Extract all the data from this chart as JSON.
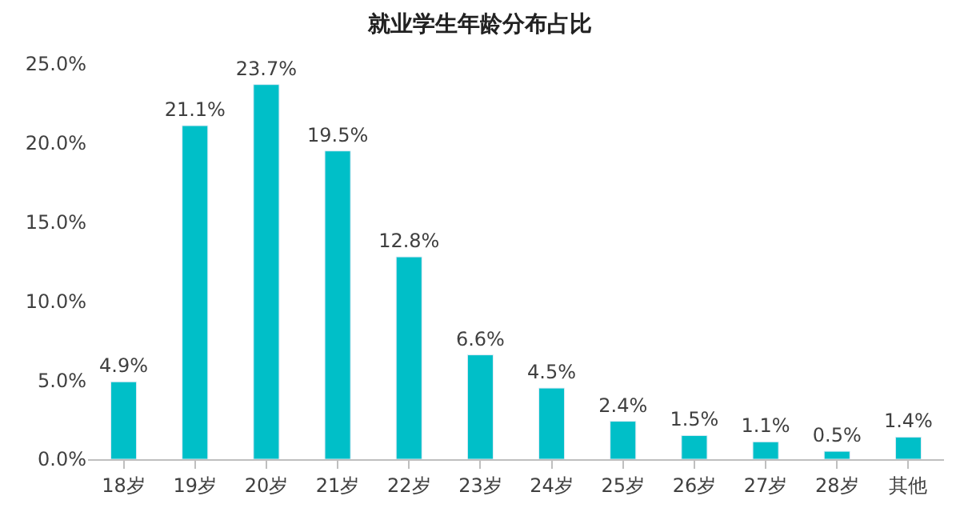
{
  "chart_data": {
    "type": "bar",
    "title": "就业学生年龄分布占比",
    "categories": [
      "18岁",
      "19岁",
      "20岁",
      "21岁",
      "22岁",
      "23岁",
      "24岁",
      "25岁",
      "26岁",
      "27岁",
      "28岁",
      "其他"
    ],
    "values": [
      4.9,
      21.1,
      23.7,
      19.5,
      12.8,
      6.6,
      4.5,
      2.4,
      1.5,
      1.1,
      0.5,
      1.4
    ],
    "value_labels": [
      "4.9%",
      "21.1%",
      "23.7%",
      "19.5%",
      "12.8%",
      "6.6%",
      "4.5%",
      "2.4%",
      "1.5%",
      "1.1%",
      "0.5%",
      "1.4%"
    ],
    "color": "#00bfc8",
    "ylim": [
      0,
      25
    ],
    "yticks": [
      {
        "value": 0,
        "label": "0.0%"
      },
      {
        "value": 5,
        "label": "5.0%"
      },
      {
        "value": 10,
        "label": "10.0%"
      },
      {
        "value": 15,
        "label": "15.0%"
      },
      {
        "value": 20,
        "label": "20.0%"
      },
      {
        "value": 25,
        "label": "25.0%"
      }
    ],
    "legend": false
  }
}
